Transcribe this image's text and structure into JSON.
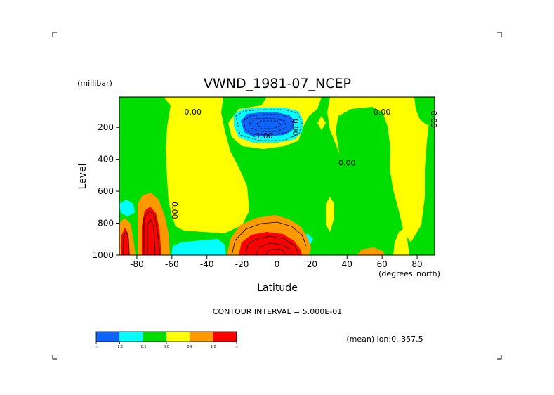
{
  "chart_data": {
    "type": "heatmap",
    "title": "VWND_1981-07_NCEP",
    "ylabel": "Level",
    "yunits": "(millibar)",
    "xlabel": "Latitude",
    "xunits": "(degrees_north)",
    "xlim": [
      -90,
      90
    ],
    "ylim": [
      1000,
      10
    ],
    "xticks": [
      -80,
      -60,
      -40,
      -20,
      0,
      20,
      40,
      60,
      80
    ],
    "xtick_labels": [
      "-80",
      "-60",
      "-40",
      "-20",
      "0",
      "20",
      "40",
      "60",
      "80"
    ],
    "yticks": [
      200,
      400,
      600,
      800,
      1000
    ],
    "ytick_labels": [
      "200",
      "400",
      "600",
      "800",
      "1000"
    ],
    "contour_interval_text": "CONTOUR INTERVAL = 5.000E-01",
    "subtitle_right": "(mean) lon:0..357.5",
    "contour_labels": [
      {
        "text": "0.00",
        "lat": -48,
        "lev": 120
      },
      {
        "text": "0.00",
        "lat": 40,
        "lev": 440
      },
      {
        "text": "0.00",
        "lat": 60,
        "lev": 120
      },
      {
        "text": "-1.00",
        "lat": -8,
        "lev": 270
      },
      {
        "text": "0.00",
        "lat": 9,
        "lev": 200,
        "vertical": true
      },
      {
        "text": "0.00",
        "lat": 88,
        "lev": 150,
        "vertical": true
      },
      {
        "text": "0.00",
        "lat": -60,
        "lev": 720,
        "vertical": true
      }
    ],
    "colorbar": {
      "levels": [
        "-∞",
        "-1.5",
        "-0.5",
        "0.0",
        "0.5",
        "1.0",
        "∞"
      ],
      "colors": [
        "#0d64ff",
        "#00ffff",
        "#00dd00",
        "#ffff00",
        "#ff9900",
        "#ff0000"
      ]
    },
    "regions": [
      {
        "name": "background",
        "value": "0 to 0.5",
        "color": "#ffff00"
      },
      {
        "name": "weak-negative",
        "value": "-0.5 to 0",
        "color": "#00dd00"
      },
      {
        "name": "moderate-negative",
        "value": "-1.5 to -0.5",
        "color": "#00ffff"
      },
      {
        "name": "strong-negative",
        "value": "< -1.5",
        "color": "#0d64ff"
      },
      {
        "name": "moderate-positive",
        "value": "0.5 to 1.0",
        "color": "#ff9900"
      },
      {
        "name": "strong-positive",
        "value": "> 1.0",
        "color": "#ff0000"
      }
    ]
  }
}
